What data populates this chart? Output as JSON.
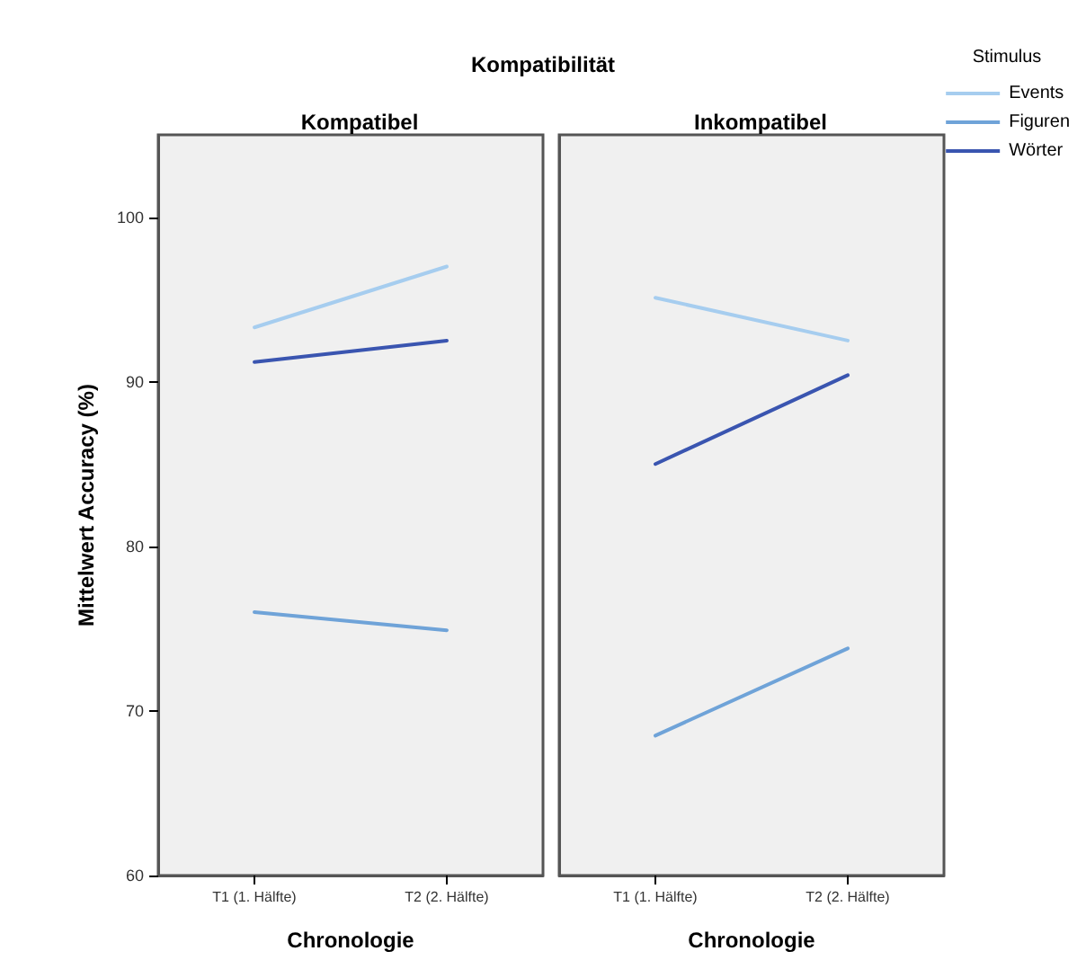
{
  "chart_data": [
    {
      "type": "line",
      "title": "Kompatibel",
      "xlabel": "Chronologie",
      "ylabel": "Mittelwert Accuracy (%)",
      "annotations": [
        "Kompatibilität"
      ],
      "categories": [
        "T1 (1. Hälfte)",
        "T2 (2. Hälfte)"
      ],
      "series": [
        {
          "color": "#a6cdef",
          "values": [
            93.3,
            97.0
          ]
        },
        {
          "color": "#6fa3d8",
          "values": [
            76.0,
            74.9
          ]
        },
        {
          "color": "#3a55b0",
          "values": [
            91.2,
            92.5
          ]
        }
      ],
      "ylim": [
        60,
        105
      ],
      "yticks": [
        60,
        70,
        80,
        90,
        100
      ],
      "grid": false,
      "legend": false,
      "marker": "none",
      "line_style": "solid"
    },
    {
      "type": "line",
      "title": "Inkompatibel",
      "xlabel": "Chronologie",
      "legend_title": "Stimulus",
      "categories": [
        "T1 (1. Hälfte)",
        "T2 (2. Hälfte)"
      ],
      "series": [
        {
          "name": "Events",
          "color": "#a6cdef",
          "values": [
            95.1,
            92.5
          ]
        },
        {
          "name": "Figuren",
          "color": "#6fa3d8",
          "values": [
            68.5,
            73.8
          ]
        },
        {
          "name": "Wörter",
          "color": "#3a55b0",
          "values": [
            85.0,
            90.4
          ]
        }
      ],
      "ylim": [
        60,
        105
      ],
      "yticks": [
        60,
        70,
        80,
        90,
        100
      ],
      "tick_labels": "x",
      "grid": false,
      "legend": "top right",
      "marker": "none",
      "line_style": "solid"
    }
  ]
}
